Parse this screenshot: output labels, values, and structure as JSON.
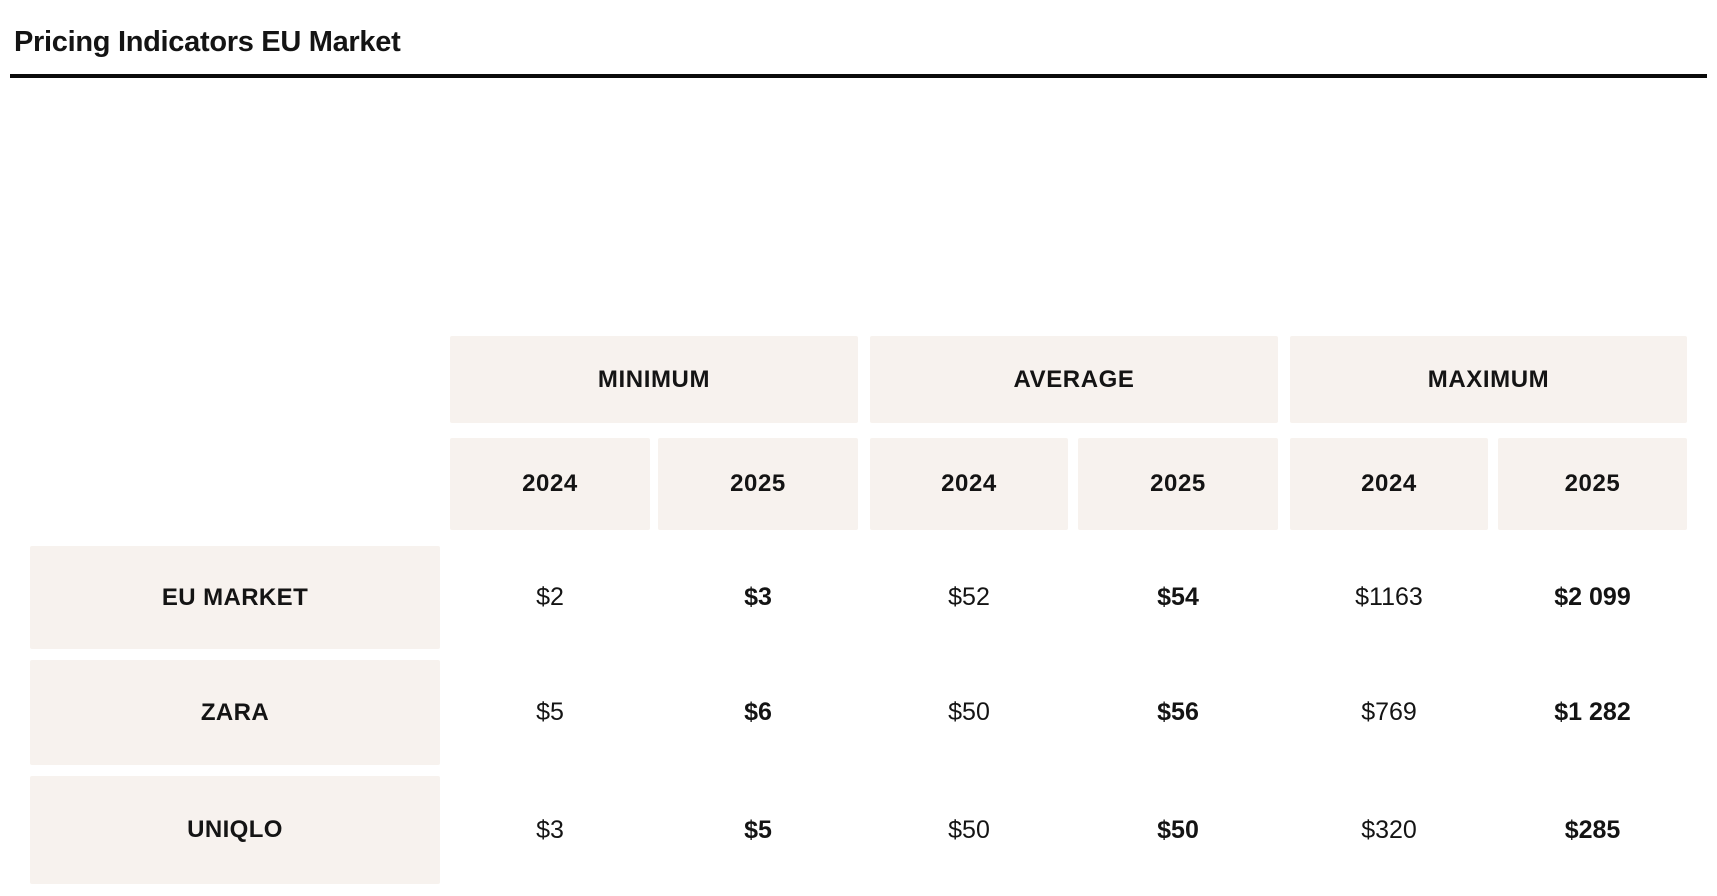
{
  "page": {
    "title": "Pricing Indicators EU Market"
  },
  "colors": {
    "beige": "#f7f2ee",
    "text": "#141414",
    "rule": "#0a0a0a",
    "background": "#ffffff"
  },
  "table": {
    "group_headers": [
      "MINIMUM",
      "AVERAGE",
      "MAXIMUM"
    ],
    "year_headers": [
      "2024",
      "2025",
      "2024",
      "2025",
      "2024",
      "2025"
    ],
    "rows": [
      {
        "label": "EU MARKET",
        "values": [
          "$2",
          "$3",
          "$52",
          "$54",
          "$1163",
          "$2 099"
        ]
      },
      {
        "label": "ZARA",
        "values": [
          "$5",
          "$6",
          "$50",
          "$56",
          "$769",
          "$1 282"
        ]
      },
      {
        "label": "UNIQLO",
        "values": [
          "$3",
          "$5",
          "$50",
          "$50",
          "$320",
          "$285"
        ]
      }
    ]
  },
  "chart_data": {
    "type": "table",
    "title": "Pricing Indicators EU Market",
    "column_groups": [
      "MINIMUM",
      "AVERAGE",
      "MAXIMUM"
    ],
    "columns": [
      "MINIMUM 2024",
      "MINIMUM 2025",
      "AVERAGE 2024",
      "AVERAGE 2025",
      "MAXIMUM 2024",
      "MAXIMUM 2025"
    ],
    "row_labels": [
      "EU MARKET",
      "ZARA",
      "UNIQLO"
    ],
    "values_usd": [
      [
        2,
        3,
        52,
        54,
        1163,
        2099
      ],
      [
        5,
        6,
        50,
        56,
        769,
        1282
      ],
      [
        3,
        5,
        50,
        50,
        320,
        285
      ]
    ],
    "notes": "2024 columns regular weight, 2025 columns bold; header and row-label cells on light beige background"
  }
}
